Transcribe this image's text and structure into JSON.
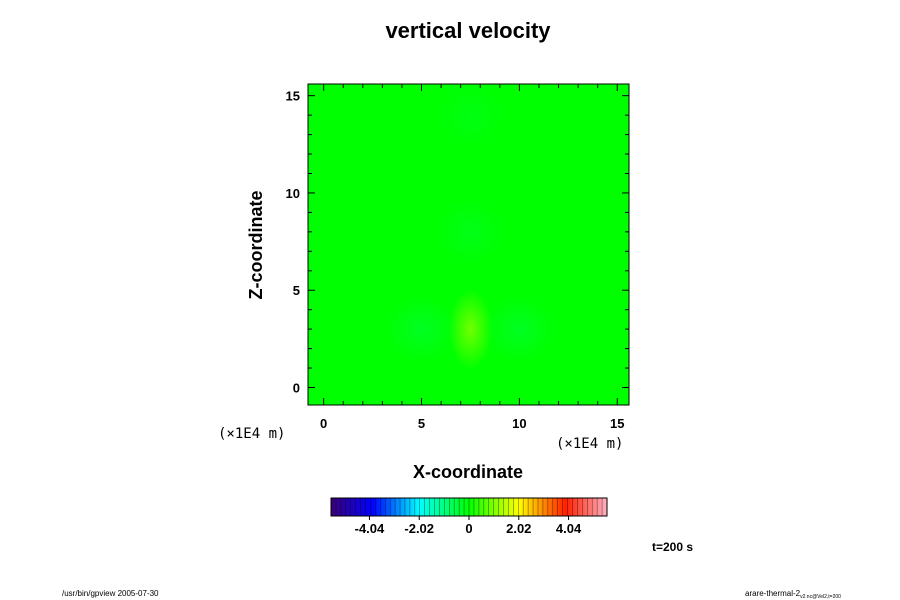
{
  "chart_data": {
    "type": "heatmap",
    "title": "vertical velocity",
    "xlabel": "X-coordinate",
    "ylabel": "Z-coordinate",
    "x_unit": "(×1E4 m)",
    "y_unit": "(×1E4 m)",
    "xlim": [
      -0.8,
      15.6
    ],
    "ylim": [
      -0.9,
      15.6
    ],
    "x_ticks": [
      0,
      5,
      10,
      15
    ],
    "y_ticks": [
      0,
      5,
      10,
      15
    ],
    "colorbar": {
      "range": [
        -5.6,
        5.6
      ],
      "tick_values": [
        -4.04,
        -2.02,
        0,
        2.02,
        4.04
      ],
      "tick_labels": [
        "-4.04",
        "-2.02",
        "0",
        "2.02",
        "4.04"
      ],
      "colormap": "rainbow"
    },
    "background_value": 0,
    "features": [
      {
        "x": 7.5,
        "z": 3.0,
        "value": 1.0
      },
      {
        "x": 5.0,
        "z": 3.0,
        "value": -0.3
      },
      {
        "x": 10.0,
        "z": 3.0,
        "value": -0.3
      },
      {
        "x": 7.5,
        "z": 8.0,
        "value": -0.2
      },
      {
        "x": 7.5,
        "z": 14.0,
        "value": -0.15
      }
    ],
    "time_label": "t=200 s"
  },
  "footer": {
    "left": "/usr/bin/gpview 2005-07-30",
    "right_main": "arare-thermal-2",
    "right_sub": "v2.nc@Vel2,t=200"
  },
  "colors": {
    "field_background": "#00ff00",
    "frame": "#000000"
  }
}
